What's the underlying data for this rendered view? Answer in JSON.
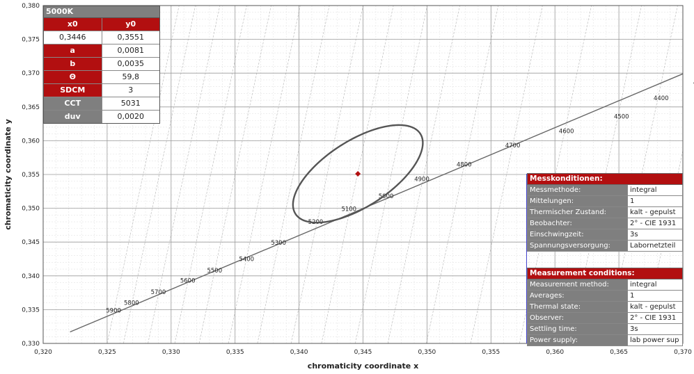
{
  "chart_data": {
    "type": "scatter",
    "xlabel": "chromaticity coordinate x",
    "ylabel": "chromaticity coordinate y",
    "xlim": [
      0.32,
      0.37
    ],
    "ylim": [
      0.33,
      0.38
    ],
    "x_ticks": [
      "0,320",
      "0,325",
      "0,330",
      "0,335",
      "0,340",
      "0,345",
      "0,350",
      "0,355",
      "0,360",
      "0,365",
      "0,370"
    ],
    "y_ticks": [
      "0,330",
      "0,335",
      "0,340",
      "0,345",
      "0,350",
      "0,355",
      "0,360",
      "0,365",
      "0,370",
      "0,375",
      "0,380"
    ],
    "grid": true,
    "planckian_locus": {
      "points": [
        [
          0.3221,
          0.3317
        ],
        [
          0.37,
          0.3699
        ]
      ],
      "cct_labels": [
        {
          "label": "5900",
          "x": 0.3255,
          "y": 0.3346
        },
        {
          "label": "5800",
          "x": 0.3269,
          "y": 0.3357
        },
        {
          "label": "5700",
          "x": 0.329,
          "y": 0.3373
        },
        {
          "label": "5600",
          "x": 0.3313,
          "y": 0.339
        },
        {
          "label": "5500",
          "x": 0.3334,
          "y": 0.3405
        },
        {
          "label": "5400",
          "x": 0.3359,
          "y": 0.3422
        },
        {
          "label": "5300",
          "x": 0.3384,
          "y": 0.3446
        },
        {
          "label": "5200",
          "x": 0.3413,
          "y": 0.3477
        },
        {
          "label": "5100",
          "x": 0.3439,
          "y": 0.3496
        },
        {
          "label": "5000",
          "x": 0.3468,
          "y": 0.3515
        },
        {
          "label": "4900",
          "x": 0.3496,
          "y": 0.354
        },
        {
          "label": "4800",
          "x": 0.3529,
          "y": 0.3562
        },
        {
          "label": "4700",
          "x": 0.3567,
          "y": 0.359
        },
        {
          "label": "4600",
          "x": 0.3609,
          "y": 0.3611
        },
        {
          "label": "4500",
          "x": 0.3652,
          "y": 0.3633
        },
        {
          "label": "4400",
          "x": 0.3683,
          "y": 0.366
        },
        {
          "label": "4300",
          "x": 0.3714,
          "y": 0.3683
        }
      ]
    },
    "ellipse": {
      "center": [
        0.3446,
        0.3551
      ],
      "a": 0.0081,
      "b": 0.0035,
      "theta_deg": 59.8
    },
    "center_point": {
      "x": 0.3446,
      "y": 0.3551,
      "color": "#b20f10"
    }
  },
  "params": {
    "title": "5000K",
    "x0_label": "x0",
    "y0_label": "y0",
    "x0_value": "0,3446",
    "y0_value": "0,3551",
    "rows": [
      {
        "label": "a",
        "value": "0,0081"
      },
      {
        "label": "b",
        "value": "0,0035"
      },
      {
        "label": "Θ",
        "value": "59,8"
      },
      {
        "label": "SDCM",
        "value": "3"
      },
      {
        "label": "CCT",
        "value": "5031"
      },
      {
        "label": "duv",
        "value": "0,0020"
      }
    ]
  },
  "conditions_de": {
    "title": "Messkonditionen:",
    "rows": [
      {
        "key": "Messmethode:",
        "value": "integral"
      },
      {
        "key": "Mittelungen:",
        "value": "1"
      },
      {
        "key": "Thermischer Zustand:",
        "value": "kalt - gepulst"
      },
      {
        "key": "Beobachter:",
        "value": "2° - CIE 1931"
      },
      {
        "key": "Einschwingzeit:",
        "value": "3s"
      },
      {
        "key": "Spannungsversorgung:",
        "value": "Labornetzteil"
      }
    ]
  },
  "conditions_en": {
    "title": "Measurement conditions:",
    "rows": [
      {
        "key": "Measurement method:",
        "value": "integral"
      },
      {
        "key": "Averages:",
        "value": "1"
      },
      {
        "key": "Thermal state:",
        "value": "kalt - gepulst"
      },
      {
        "key": "Observer:",
        "value": "2° - CIE 1931"
      },
      {
        "key": "Settling time:",
        "value": "3s"
      },
      {
        "key": "Power supply:",
        "value": "lab power sup"
      }
    ]
  },
  "colors": {
    "accent_red": "#b20f10",
    "header_gray": "#7f7f7f",
    "line": "#555555"
  }
}
